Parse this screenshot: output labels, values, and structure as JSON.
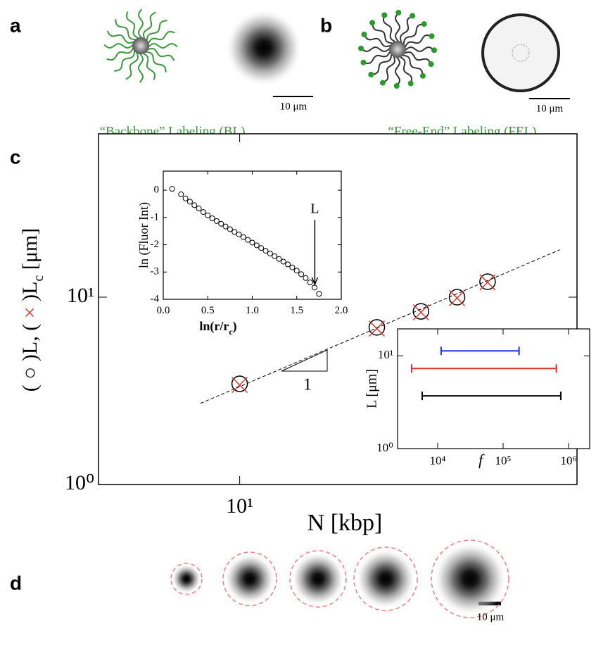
{
  "panels": {
    "a": {
      "label": "a",
      "caption": "“Backbone” Labeling (BL)",
      "scale_bar": "10 μm"
    },
    "b": {
      "label": "b",
      "caption": "“Free-End” Labeling (FEL)",
      "scale_bar": "10 μm"
    },
    "d": {
      "label": "d",
      "scale_bar": "10 μm"
    }
  },
  "chart_data": [
    {
      "type": "scatter",
      "panel_label": "c",
      "x_label": "N [kbp]",
      "y_label": [
        "( ",
        "○",
        " )L, ( ",
        "×",
        " )L",
        "c",
        " [μm]"
      ],
      "xlog": true,
      "ylog": true,
      "xlim": [
        4.9,
        55
      ],
      "ylim": [
        1,
        74.5
      ],
      "xticks": [
        {
          "value": 10,
          "label": "10¹"
        }
      ],
      "yticks": [
        {
          "value": 1,
          "label": "10⁰"
        },
        {
          "value": 10,
          "label": "10¹"
        }
      ],
      "series": [
        {
          "marker": "circle",
          "color": "#000000",
          "x": [
            10,
            20,
            25,
            30,
            35
          ],
          "values": [
            3.45,
            6.9,
            8.4,
            10,
            12.1
          ]
        },
        {
          "marker": "cross",
          "color": "#e8392e",
          "x": [
            10,
            20,
            25,
            30,
            35
          ],
          "values": [
            3.4,
            6.8,
            8.3,
            9.9,
            12.0
          ]
        },
        {
          "marker": "dashed-line",
          "color": "#000000",
          "x": [
            8.2,
            50.4
          ],
          "values": [
            2.71,
            17.9
          ]
        }
      ],
      "slope_label": "1"
    },
    {
      "type": "line",
      "marker": "circle",
      "x_label": [
        "ln(r/r",
        "c",
        ")"
      ],
      "y_label": "ln (Fluor Int)",
      "xlim": [
        0,
        2
      ],
      "ylim": [
        -4,
        0.7
      ],
      "xticks": [
        {
          "value": 0,
          "label": "0.0"
        },
        0.5,
        {
          "value": 1,
          "label": "1.0"
        },
        1.5,
        {
          "value": 2,
          "label": "2.0"
        }
      ],
      "yticks": [
        0,
        -1,
        -2,
        -3,
        -4
      ],
      "x": [
        0.1,
        0.2,
        0.25,
        0.3,
        0.35,
        0.4,
        0.45,
        0.5,
        0.55,
        0.6,
        0.65,
        0.7,
        0.75,
        0.8,
        0.85,
        0.9,
        0.95,
        1.0,
        1.05,
        1.1,
        1.15,
        1.2,
        1.25,
        1.3,
        1.35,
        1.4,
        1.45,
        1.5,
        1.55,
        1.6,
        1.65,
        1.7,
        1.75
      ],
      "values": [
        0.05,
        -0.15,
        -0.3,
        -0.42,
        -0.55,
        -0.67,
        -0.8,
        -0.92,
        -1.03,
        -1.13,
        -1.23,
        -1.33,
        -1.43,
        -1.53,
        -1.62,
        -1.72,
        -1.82,
        -1.92,
        -2.02,
        -2.12,
        -2.22,
        -2.32,
        -2.42,
        -2.52,
        -2.62,
        -2.72,
        -2.83,
        -2.95,
        -3.08,
        -3.22,
        -3.38,
        -3.57,
        -3.8
      ],
      "color": "#000000",
      "annotation": {
        "text": "L",
        "x": 1.75
      }
    },
    {
      "type": "range",
      "x_label": "f",
      "y_label": "L [μm]",
      "xlog": true,
      "ylog": true,
      "xlim": [
        2440,
        2100000
      ],
      "ylim": [
        1,
        19.5
      ],
      "xticks": [
        {
          "value": 10000,
          "label": "10⁴"
        },
        {
          "value": 100000,
          "label": "10⁵"
        },
        {
          "value": 1000000,
          "label": "10⁶"
        }
      ],
      "yticks": [
        {
          "value": 1,
          "label": "10⁰"
        },
        {
          "value": 10,
          "label": "10¹"
        }
      ],
      "series": [
        {
          "color": "#2030e0",
          "values": [
            11.3
          ],
          "x_ranges": [
            [
              11300,
              175000
            ]
          ]
        },
        {
          "color": "#e0302a",
          "values": [
            7.3
          ],
          "x_ranges": [
            [
              4000,
              650000
            ]
          ]
        },
        {
          "color": "#000000",
          "values": [
            3.7
          ],
          "x_ranges": [
            [
              5800,
              760000
            ]
          ]
        }
      ]
    }
  ]
}
